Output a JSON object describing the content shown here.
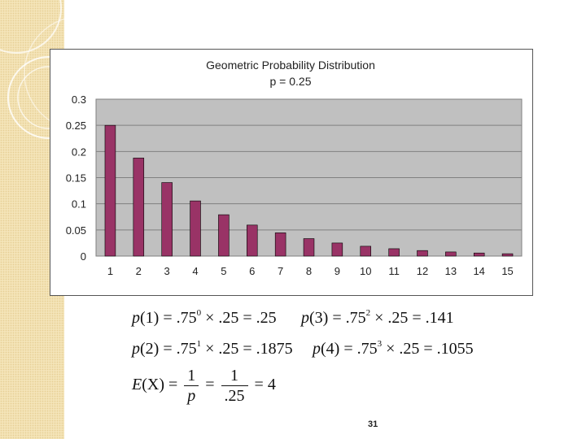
{
  "chart_data": {
    "type": "bar",
    "title": "Geometric Probability Distribution",
    "subtitle": "p = 0.25",
    "categories": [
      "1",
      "2",
      "3",
      "4",
      "5",
      "6",
      "7",
      "8",
      "9",
      "10",
      "11",
      "12",
      "13",
      "14",
      "15"
    ],
    "values": [
      0.25,
      0.1875,
      0.1406,
      0.1055,
      0.0791,
      0.0593,
      0.0445,
      0.0334,
      0.025,
      0.0188,
      0.0141,
      0.0106,
      0.0079,
      0.0059,
      0.0045
    ],
    "ylim": [
      0,
      0.3
    ],
    "yticks": [
      "0",
      "0.05",
      "0.1",
      "0.15",
      "0.2",
      "0.25",
      "0.3"
    ],
    "grid": true,
    "bar_color": "#993366",
    "plot_background": "#c0c0c0"
  },
  "formulas": {
    "p1": {
      "lhs": "p",
      "arg": "(1)",
      "eq": " = .75",
      "exp": "0",
      "rest": " × .25 = .25"
    },
    "p3": {
      "lhs": "p",
      "arg": "(3)",
      "eq": " = .75",
      "exp": "2",
      "rest": " × .25 = .141"
    },
    "p2": {
      "lhs": "p",
      "arg": "(2)",
      "eq": " = .75",
      "exp": "1",
      "rest": " × .25 = .1875"
    },
    "p4": {
      "lhs": "p",
      "arg": "(4)",
      "eq": " = .75",
      "exp": "3",
      "rest": " × .25 = .1055"
    },
    "expectation": {
      "lhs": "E",
      "arg": "(X)",
      "eq": " =",
      "frac1_num": "1",
      "frac1_den": "p",
      "eq2": "=",
      "frac2_num": "1",
      "frac2_den": ".25",
      "result": "= 4"
    }
  },
  "page_number": "31"
}
